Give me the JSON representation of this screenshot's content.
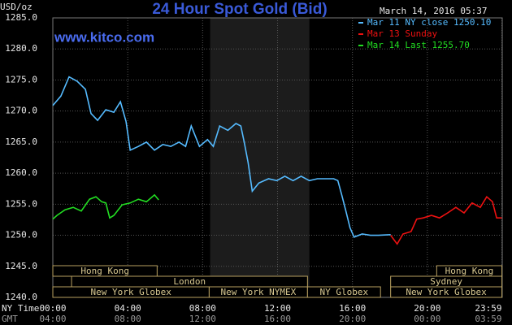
{
  "chart_data": {
    "type": "line",
    "title": "24 Hour Spot Gold (Bid)",
    "subtitle": "www.kitco.com",
    "timestamp": "March 14, 2016 05:37",
    "y_label": "USD/oz",
    "x_label": "NY Time",
    "x2_label": "GMT",
    "xlim": [
      0,
      24
    ],
    "ylim": [
      1240,
      1285
    ],
    "yticks": [
      {
        "value": 1240,
        "label": "1240.0"
      },
      {
        "value": 1245,
        "label": "1245.0"
      },
      {
        "value": 1250,
        "label": "1250.0"
      },
      {
        "value": 1255,
        "label": "1255.0"
      },
      {
        "value": 1260,
        "label": "1260.0"
      },
      {
        "value": 1265,
        "label": "1265.0"
      },
      {
        "value": 1270,
        "label": "1270.0"
      },
      {
        "value": 1275,
        "label": "1275.0"
      },
      {
        "value": 1280,
        "label": "1280.0"
      },
      {
        "value": 1285,
        "label": "1285.0"
      }
    ],
    "xticks": [
      {
        "value": 0,
        "label": "00:00"
      },
      {
        "value": 4,
        "label": "04:00"
      },
      {
        "value": 8,
        "label": "08:00"
      },
      {
        "value": 12,
        "label": "12:00"
      },
      {
        "value": 16,
        "label": "16:00"
      },
      {
        "value": 20,
        "label": "20:00"
      },
      {
        "value": 23.98,
        "label": "23:59"
      }
    ],
    "x2ticks": [
      {
        "value": 0,
        "label": "04:00"
      },
      {
        "value": 4,
        "label": "08:00"
      },
      {
        "value": 8,
        "label": "12:00"
      },
      {
        "value": 12,
        "label": "16:00"
      },
      {
        "value": 16,
        "label": "20:00"
      },
      {
        "value": 20,
        "label": "00:00"
      },
      {
        "value": 23.98,
        "label": "03:59"
      }
    ],
    "grid": true,
    "shaded_band": [
      8.4,
      13.7
    ],
    "series": [
      {
        "name": "Mar 11 NY close 1250.10",
        "color": "#55bbff",
        "x": [
          0,
          0.43,
          0.87,
          1.3,
          1.74,
          2.04,
          2.39,
          2.83,
          3.26,
          3.61,
          3.91,
          4.13,
          4.57,
          5.0,
          5.43,
          5.87,
          6.3,
          6.74,
          7.09,
          7.39,
          7.83,
          8.26,
          8.57,
          8.91,
          9.35,
          9.78,
          10.04,
          10.22,
          10.43,
          10.65,
          11.0,
          11.52,
          11.96,
          12.39,
          12.83,
          13.26,
          13.7,
          14.13,
          14.57,
          15.0,
          15.22,
          15.43,
          15.65,
          15.87,
          16.09,
          16.52,
          16.96,
          17.39,
          18.04
        ],
        "values": [
          1270.9,
          1272.4,
          1275.5,
          1274.8,
          1273.5,
          1269.6,
          1268.5,
          1270.2,
          1269.8,
          1271.5,
          1268.3,
          1263.7,
          1264.3,
          1265.0,
          1263.7,
          1264.6,
          1264.3,
          1265.0,
          1264.3,
          1267.6,
          1264.3,
          1265.4,
          1264.3,
          1267.6,
          1266.9,
          1268.0,
          1267.6,
          1265.0,
          1261.7,
          1257.1,
          1258.4,
          1259.1,
          1258.8,
          1259.5,
          1258.8,
          1259.5,
          1258.8,
          1259.1,
          1259.1,
          1259.1,
          1258.8,
          1256.5,
          1253.9,
          1251.2,
          1249.7,
          1250.2,
          1250.0,
          1250.0,
          1250.1
        ]
      },
      {
        "name": "Mar 13 Sunday",
        "color": "#ee1111",
        "x": [
          18.04,
          18.39,
          18.7,
          19.13,
          19.43,
          19.78,
          20.22,
          20.65,
          21.09,
          21.52,
          21.96,
          22.39,
          22.83,
          23.17,
          23.48,
          23.7,
          23.98
        ],
        "values": [
          1250.0,
          1248.6,
          1250.2,
          1250.6,
          1252.6,
          1252.8,
          1253.2,
          1252.8,
          1253.6,
          1254.5,
          1253.6,
          1255.2,
          1254.5,
          1256.2,
          1255.4,
          1252.8,
          1252.8
        ]
      },
      {
        "name": "Mar 14 Last 1255.70",
        "color": "#22dd22",
        "x": [
          0,
          0.22,
          0.65,
          1.09,
          1.52,
          1.96,
          2.3,
          2.61,
          2.83,
          3.04,
          3.26,
          3.7,
          4.13,
          4.57,
          5.0,
          5.43,
          5.65
        ],
        "values": [
          1252.6,
          1253.2,
          1254.1,
          1254.5,
          1253.9,
          1255.8,
          1256.2,
          1255.4,
          1255.2,
          1252.8,
          1253.2,
          1254.9,
          1255.2,
          1255.8,
          1255.4,
          1256.5,
          1255.7
        ]
      }
    ],
    "sessions": [
      {
        "label": "Hong Kong",
        "start": 0,
        "end": 5.57,
        "row": 0
      },
      {
        "label": "Hong Kong",
        "start": 20.5,
        "end": 23.98,
        "row": 0
      },
      {
        "label": "London",
        "start": 1.0,
        "end": 13.6,
        "row": 1
      },
      {
        "label": "Sydney",
        "start": 18.04,
        "end": 23.98,
        "row": 1
      },
      {
        "label": "New York Globex",
        "start": 0,
        "end": 8.35,
        "row": 2
      },
      {
        "label": "New York NYMEX",
        "start": 8.35,
        "end": 13.6,
        "row": 2
      },
      {
        "label": "NY Globex",
        "start": 13.6,
        "end": 17.5,
        "row": 2
      },
      {
        "label": "New York Globex",
        "start": 18.04,
        "end": 23.98,
        "row": 2
      }
    ]
  }
}
